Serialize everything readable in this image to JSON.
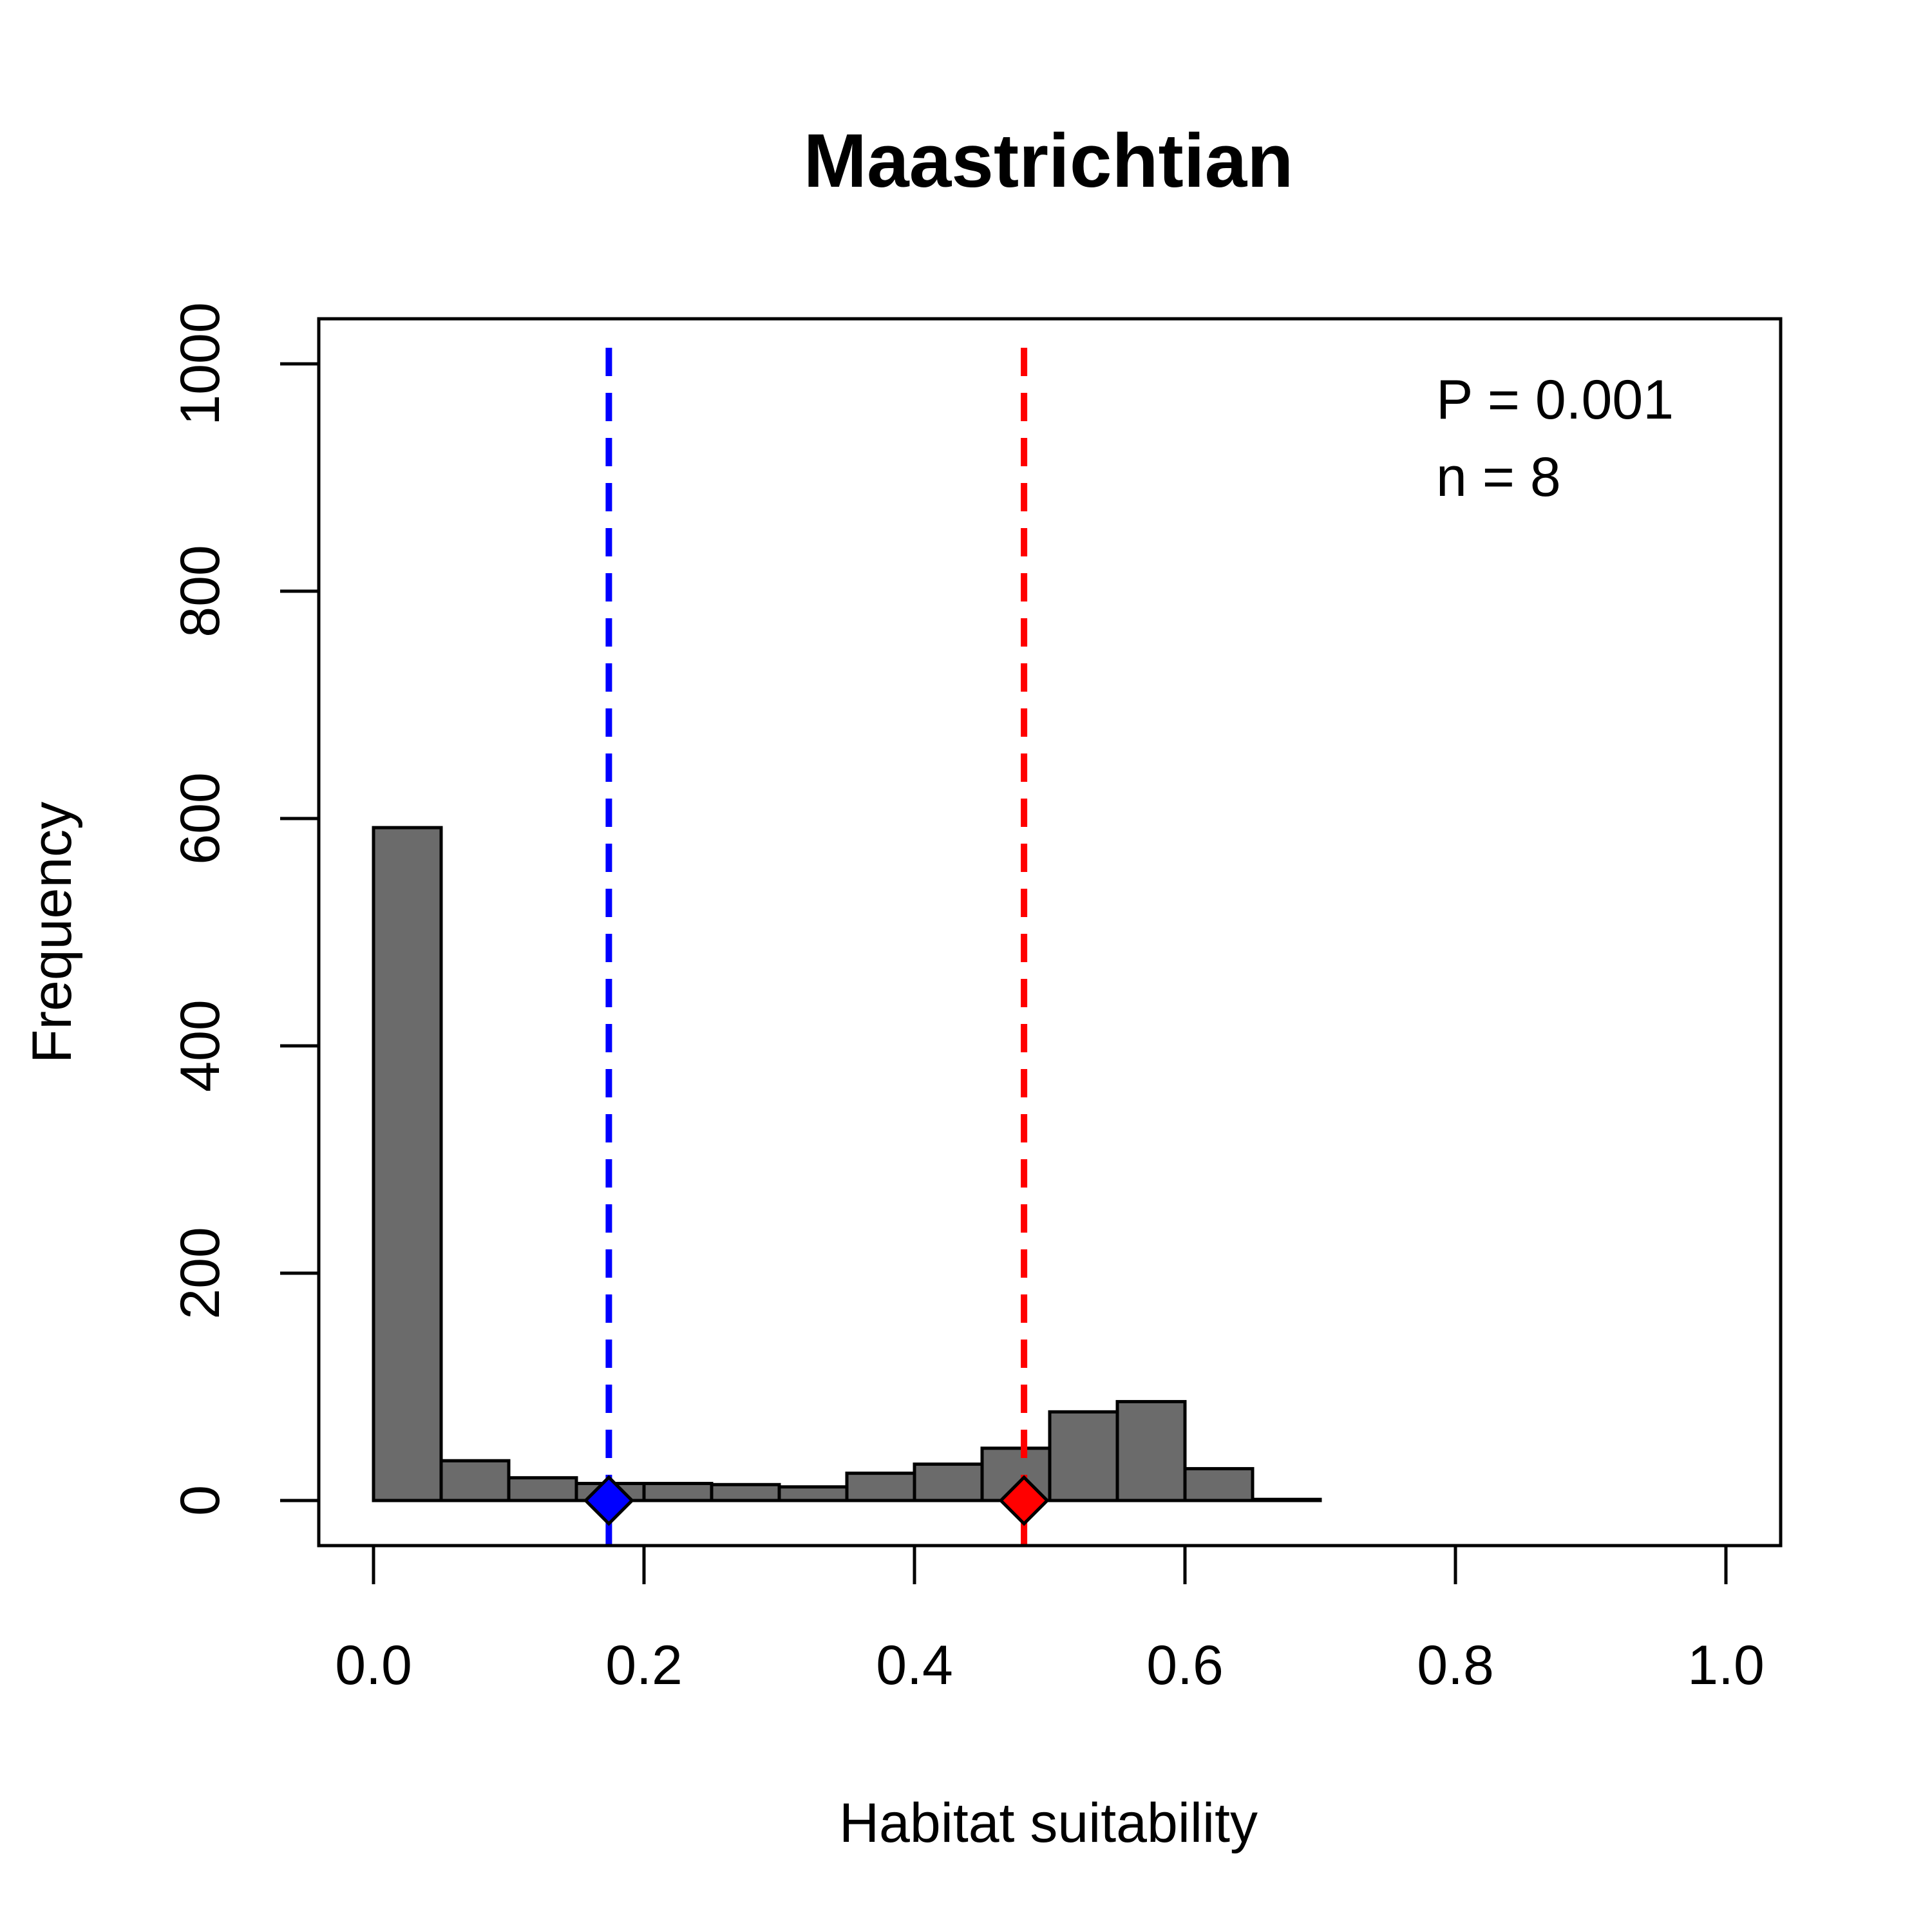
{
  "chart_data": {
    "type": "bar",
    "title": "Maastrichtian",
    "xlabel": "Habitat suitability",
    "ylabel": "Frequency",
    "xlim": [
      0,
      1
    ],
    "ylim": [
      0,
      1000
    ],
    "x_ticks": [
      "0.0",
      "0.2",
      "0.4",
      "0.6",
      "0.8",
      "1.0"
    ],
    "y_ticks": [
      "0",
      "200",
      "400",
      "600",
      "800",
      "1000"
    ],
    "bar_color": "#6b6b6b",
    "bins": [
      {
        "start": 0.0,
        "end": 0.05,
        "count": 592
      },
      {
        "start": 0.05,
        "end": 0.1,
        "count": 35
      },
      {
        "start": 0.1,
        "end": 0.15,
        "count": 20
      },
      {
        "start": 0.15,
        "end": 0.2,
        "count": 15
      },
      {
        "start": 0.2,
        "end": 0.25,
        "count": 15
      },
      {
        "start": 0.25,
        "end": 0.3,
        "count": 14
      },
      {
        "start": 0.3,
        "end": 0.35,
        "count": 12
      },
      {
        "start": 0.35,
        "end": 0.4,
        "count": 24
      },
      {
        "start": 0.4,
        "end": 0.45,
        "count": 32
      },
      {
        "start": 0.45,
        "end": 0.5,
        "count": 46
      },
      {
        "start": 0.5,
        "end": 0.55,
        "count": 78
      },
      {
        "start": 0.55,
        "end": 0.6,
        "count": 87
      },
      {
        "start": 0.6,
        "end": 0.65,
        "count": 28
      },
      {
        "start": 0.65,
        "end": 0.7,
        "count": 1
      }
    ],
    "reference_lines": [
      {
        "x": 0.174,
        "color": "#0000ff",
        "style": "dashed",
        "marker": "diamond"
      },
      {
        "x": 0.481,
        "color": "#ff0000",
        "style": "dashed",
        "marker": "diamond"
      }
    ],
    "annotations": {
      "p_value": "P  =  0.001",
      "n": "n  =  8"
    },
    "grid": false,
    "legend": "none"
  }
}
